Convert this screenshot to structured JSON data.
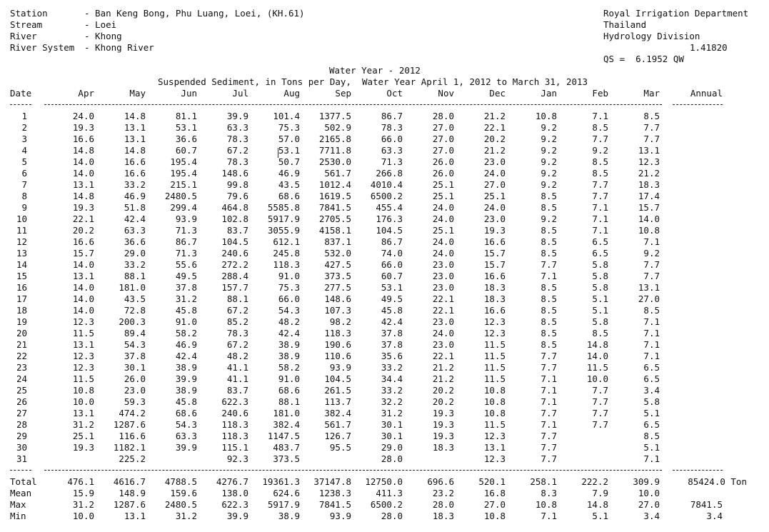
{
  "header": {
    "left": [
      {
        "label": "Station",
        "value": "- Ban Keng Bong, Phu Luang, Loei, (KH.61)"
      },
      {
        "label": "Stream",
        "value": "- Loei"
      },
      {
        "label": "River",
        "value": "- Khong"
      },
      {
        "label": "River System",
        "value": "- Khong River"
      }
    ],
    "right": {
      "line1": "Royal Irrigation Department",
      "line2": "Thailand",
      "line3": "Hydrology Division",
      "exponent": "1.41820",
      "formula": "QS =  6.1952 QW"
    }
  },
  "title": "Water Year - 2012",
  "subtitle": "Suspended Sediment, in Tons per Day,  Water Year April 1, 2012 to March 31, 2013",
  "columns": [
    "Date",
    "Apr",
    "May",
    "Jun",
    "Jul",
    "Aug",
    "Sep",
    "Oct",
    "Nov",
    "Dec",
    "Jan",
    "Feb",
    "Mar",
    "Annual"
  ],
  "dash_short": "----",
  "rows": [
    [
      "1",
      "24.0",
      "14.8",
      "81.1",
      "39.9",
      "101.4",
      "1377.5",
      "86.7",
      "28.0",
      "21.2",
      "10.8",
      "7.1",
      "8.5"
    ],
    [
      "2",
      "19.3",
      "13.1",
      "53.1",
      "63.3",
      "75.3",
      "502.9",
      "78.3",
      "27.0",
      "22.1",
      "9.2",
      "8.5",
      "7.7"
    ],
    [
      "3",
      "16.6",
      "13.1",
      "36.6",
      "78.3",
      "57.0",
      "2165.8",
      "66.0",
      "27.0",
      "20.2",
      "9.2",
      "7.7",
      "7.7"
    ],
    [
      "4",
      "14.8",
      "14.8",
      "60.7",
      "67.2",
      "53.1",
      "7711.8",
      "63.3",
      "27.0",
      "21.2",
      "9.2",
      "9.2",
      "13.1"
    ],
    [
      "5",
      "14.0",
      "16.6",
      "195.4",
      "78.3",
      "50.7",
      "2530.0",
      "71.3",
      "26.0",
      "23.0",
      "9.2",
      "8.5",
      "12.3"
    ],
    [
      "6",
      "14.0",
      "16.6",
      "195.4",
      "148.6",
      "46.9",
      "561.7",
      "266.8",
      "26.0",
      "24.0",
      "9.2",
      "8.5",
      "21.2"
    ],
    [
      "7",
      "13.1",
      "33.2",
      "215.1",
      "99.8",
      "43.5",
      "1012.4",
      "4010.4",
      "25.1",
      "27.0",
      "9.2",
      "7.7",
      "18.3"
    ],
    [
      "8",
      "14.8",
      "46.9",
      "2480.5",
      "79.6",
      "68.6",
      "1619.5",
      "6500.2",
      "25.1",
      "25.1",
      "8.5",
      "7.7",
      "17.4"
    ],
    [
      "9",
      "19.3",
      "51.8",
      "299.4",
      "464.8",
      "5585.8",
      "7841.5",
      "455.4",
      "24.0",
      "24.0",
      "8.5",
      "7.1",
      "15.7"
    ],
    [
      "10",
      "22.1",
      "42.4",
      "93.9",
      "102.8",
      "5917.9",
      "2705.5",
      "176.3",
      "24.0",
      "23.0",
      "9.2",
      "7.1",
      "14.0"
    ],
    [
      "11",
      "20.2",
      "63.3",
      "71.3",
      "83.7",
      "3055.9",
      "4158.1",
      "104.5",
      "25.1",
      "19.3",
      "8.5",
      "7.1",
      "10.8"
    ],
    [
      "12",
      "16.6",
      "36.6",
      "86.7",
      "104.5",
      "612.1",
      "837.1",
      "86.7",
      "24.0",
      "16.6",
      "8.5",
      "6.5",
      "7.1"
    ],
    [
      "13",
      "15.7",
      "29.0",
      "71.3",
      "240.6",
      "245.8",
      "532.0",
      "74.0",
      "24.0",
      "15.7",
      "8.5",
      "6.5",
      "9.2"
    ],
    [
      "14",
      "14.0",
      "33.2",
      "55.6",
      "272.2",
      "118.3",
      "427.5",
      "66.0",
      "23.0",
      "15.7",
      "7.7",
      "5.8",
      "7.7"
    ],
    [
      "15",
      "13.1",
      "88.1",
      "49.5",
      "288.4",
      "91.0",
      "373.5",
      "60.7",
      "23.0",
      "16.6",
      "7.1",
      "5.8",
      "7.7"
    ],
    [
      "16",
      "14.0",
      "181.0",
      "37.8",
      "157.7",
      "75.3",
      "277.5",
      "53.1",
      "23.0",
      "18.3",
      "8.5",
      "5.8",
      "13.1"
    ],
    [
      "17",
      "14.0",
      "43.5",
      "31.2",
      "88.1",
      "66.0",
      "148.6",
      "49.5",
      "22.1",
      "18.3",
      "8.5",
      "5.1",
      "27.0"
    ],
    [
      "18",
      "14.0",
      "72.8",
      "45.8",
      "67.2",
      "54.3",
      "107.3",
      "45.8",
      "22.1",
      "16.6",
      "8.5",
      "5.1",
      "8.5"
    ],
    [
      "19",
      "12.3",
      "200.3",
      "91.0",
      "85.2",
      "48.2",
      "98.2",
      "42.4",
      "23.0",
      "12.3",
      "8.5",
      "5.8",
      "7.1"
    ],
    [
      "20",
      "11.5",
      "89.4",
      "58.2",
      "78.3",
      "42.4",
      "118.3",
      "37.8",
      "24.0",
      "12.3",
      "8.5",
      "8.5",
      "7.1"
    ],
    [
      "21",
      "13.1",
      "54.3",
      "46.9",
      "67.2",
      "38.9",
      "190.6",
      "37.8",
      "23.0",
      "11.5",
      "8.5",
      "14.8",
      "7.1"
    ],
    [
      "22",
      "12.3",
      "37.8",
      "42.4",
      "48.2",
      "38.9",
      "110.6",
      "35.6",
      "22.1",
      "11.5",
      "7.7",
      "14.0",
      "7.1"
    ],
    [
      "23",
      "12.3",
      "30.1",
      "38.9",
      "41.1",
      "58.2",
      "93.9",
      "33.2",
      "21.2",
      "11.5",
      "7.7",
      "11.5",
      "6.5"
    ],
    [
      "24",
      "11.5",
      "26.0",
      "39.9",
      "41.1",
      "91.0",
      "104.5",
      "34.4",
      "21.2",
      "11.5",
      "7.1",
      "10.0",
      "6.5"
    ],
    [
      "25",
      "10.8",
      "23.0",
      "38.9",
      "83.7",
      "68.6",
      "261.5",
      "33.2",
      "20.2",
      "10.8",
      "7.1",
      "7.7",
      "3.4"
    ],
    [
      "26",
      "10.0",
      "59.3",
      "45.8",
      "622.3",
      "88.1",
      "113.7",
      "32.2",
      "20.2",
      "10.8",
      "7.1",
      "7.7",
      "5.8"
    ],
    [
      "27",
      "13.1",
      "474.2",
      "68.6",
      "240.6",
      "181.0",
      "382.4",
      "31.2",
      "19.3",
      "10.8",
      "7.7",
      "7.7",
      "5.1"
    ],
    [
      "28",
      "31.2",
      "1287.6",
      "54.3",
      "118.3",
      "382.4",
      "561.7",
      "30.1",
      "19.3",
      "11.5",
      "7.1",
      "7.7",
      "6.5"
    ],
    [
      "29",
      "25.1",
      "116.6",
      "63.3",
      "118.3",
      "1147.5",
      "126.7",
      "30.1",
      "19.3",
      "12.3",
      "7.7",
      "",
      "8.5"
    ],
    [
      "30",
      "19.3",
      "1182.1",
      "39.9",
      "115.1",
      "483.7",
      "95.5",
      "29.0",
      "18.3",
      "13.1",
      "7.7",
      "",
      "5.1"
    ],
    [
      "31",
      "",
      "225.2",
      "",
      "92.3",
      "373.5",
      "",
      "28.0",
      "",
      "12.3",
      "7.7",
      "",
      "7.1"
    ]
  ],
  "summary": [
    {
      "label": "Total",
      "values": [
        "476.1",
        "4616.7",
        "4788.5",
        "4276.7",
        "19361.3",
        "37147.8",
        "12750.0",
        "696.6",
        "520.1",
        "258.1",
        "222.2",
        "309.9"
      ],
      "annual": "85424.0 Ton"
    },
    {
      "label": "Mean",
      "values": [
        "15.9",
        "148.9",
        "159.6",
        "138.0",
        "624.6",
        "1238.3",
        "411.3",
        "23.2",
        "16.8",
        "8.3",
        "7.9",
        "10.0"
      ],
      "annual": ""
    },
    {
      "label": "Max",
      "values": [
        "31.2",
        "1287.6",
        "2480.5",
        "622.3",
        "5917.9",
        "7841.5",
        "6500.2",
        "28.0",
        "27.0",
        "10.8",
        "14.8",
        "27.0"
      ],
      "annual": "7841.5"
    },
    {
      "label": "Min",
      "values": [
        "10.0",
        "13.1",
        "31.2",
        "39.9",
        "38.9",
        "93.9",
        "28.0",
        "18.3",
        "10.8",
        "7.1",
        "5.1",
        "3.4"
      ],
      "annual": "3.4"
    }
  ]
}
